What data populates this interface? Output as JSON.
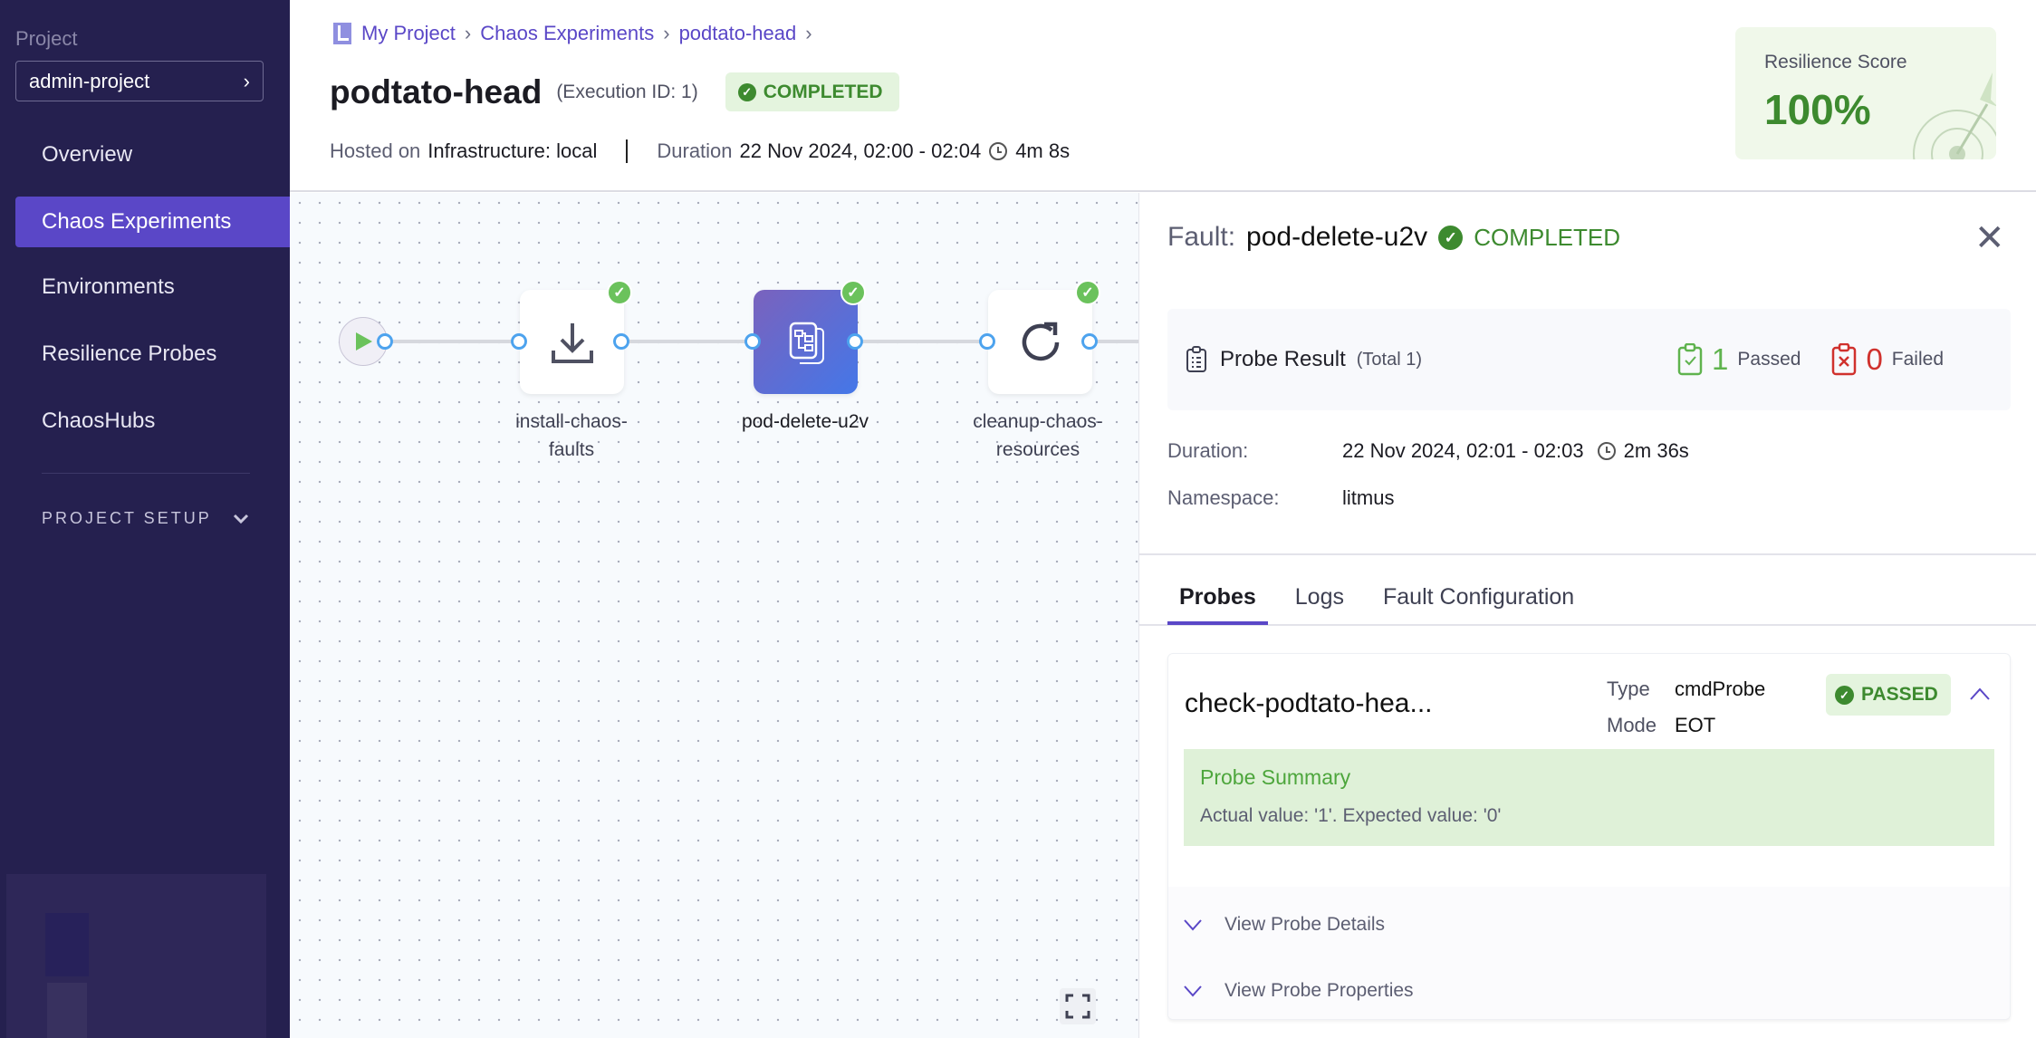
{
  "sidebar": {
    "project_label": "Project",
    "project_value": "admin-project",
    "items": [
      {
        "label": "Overview"
      },
      {
        "label": "Chaos Experiments",
        "active": true
      },
      {
        "label": "Environments"
      },
      {
        "label": "Resilience Probes"
      },
      {
        "label": "ChaosHubs"
      }
    ],
    "section": "PROJECT SETUP"
  },
  "header": {
    "breadcrumb": [
      "My Project",
      "Chaos Experiments",
      "podtato-head"
    ],
    "title": "podtato-head",
    "execution_id": "(Execution ID: 1)",
    "status": "COMPLETED",
    "hosted_label": "Hosted on",
    "hosted_value": "Infrastructure: local",
    "duration_label": "Duration",
    "duration_value": "22 Nov 2024, 02:00 - 02:04",
    "duration_elapsed": "4m 8s",
    "resilience_label": "Resilience Score",
    "resilience_value": "100%"
  },
  "canvas": {
    "nodes": [
      {
        "label1": "install-chaos-",
        "label2": "faults",
        "icon": "download-icon",
        "status": "completed"
      },
      {
        "label1": "pod-delete-u2v",
        "label2": "",
        "icon": "chaos-fault-icon",
        "status": "completed",
        "selected": true
      },
      {
        "label1": "cleanup-chaos-",
        "label2": "resources",
        "icon": "refresh-icon",
        "status": "completed"
      }
    ]
  },
  "panel": {
    "fault_label": "Fault:",
    "fault_name": "pod-delete-u2v",
    "fault_status": "COMPLETED",
    "probe_result_label": "Probe Result",
    "probe_total": "(Total 1)",
    "passed_count": "1",
    "passed_label": "Passed",
    "failed_count": "0",
    "failed_label": "Failed",
    "duration_label": "Duration:",
    "duration_value": "22 Nov 2024, 02:01 - 02:03",
    "duration_elapsed": "2m 36s",
    "namespace_label": "Namespace:",
    "namespace_value": "litmus",
    "tabs": [
      {
        "label": "Probes",
        "active": true
      },
      {
        "label": "Logs"
      },
      {
        "label": "Fault Configuration"
      }
    ],
    "probe": {
      "name": "check-podtato-hea...",
      "type_label": "Type",
      "type_value": "cmdProbe",
      "mode_label": "Mode",
      "mode_value": "EOT",
      "status": "PASSED",
      "summary_title": "Probe Summary",
      "summary_text": "Actual value: '1'. Expected value: '0'",
      "details_link": "View Probe Details",
      "properties_link": "View Probe Properties"
    }
  },
  "colors": {
    "accent": "#5a47c7",
    "sidebar": "#25204f",
    "success": "#3d8a2f",
    "fail": "#d0312d"
  }
}
